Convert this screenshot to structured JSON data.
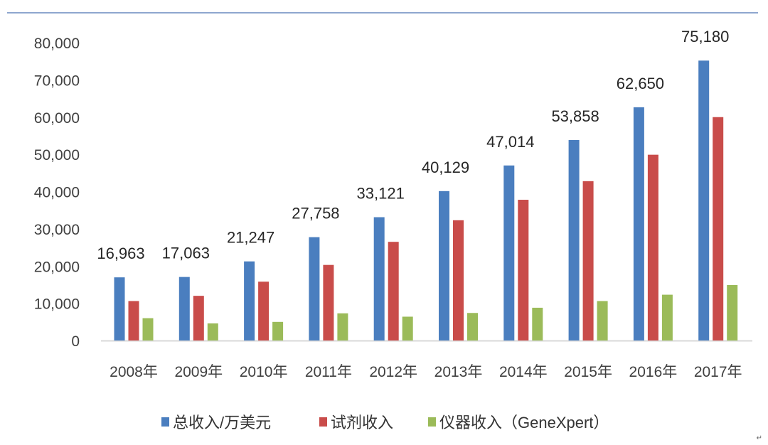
{
  "chart_data": {
    "type": "bar",
    "title": "",
    "xlabel": "",
    "ylabel": "",
    "ylim": [
      0,
      80000
    ],
    "yticks": [
      "0",
      "10,000",
      "20,000",
      "30,000",
      "40,000",
      "50,000",
      "60,000",
      "70,000",
      "80,000"
    ],
    "grid": false,
    "legend_position": "bottom",
    "categories": [
      "2008年",
      "2009年",
      "2010年",
      "2011年",
      "2012年",
      "2013年",
      "2014年",
      "2015年",
      "2016年",
      "2017年"
    ],
    "series": [
      {
        "name": "总收入/万美元",
        "color": "#4a7ebf",
        "values": [
          16963,
          17063,
          21247,
          27758,
          33121,
          40129,
          47014,
          53858,
          62650,
          75180
        ],
        "data_labels": [
          "16,963",
          "17,063",
          "21,247",
          "27,758",
          "33,121",
          "40,129",
          "47,014",
          "53,858",
          "62,650",
          "75,180"
        ]
      },
      {
        "name": "试剂收入",
        "color": "#c94c4a",
        "values": [
          10600,
          12000,
          15800,
          20300,
          26500,
          32300,
          37800,
          42800,
          49900,
          60000
        ]
      },
      {
        "name": "仪器收入（GeneXpert）",
        "color": "#9bbb59",
        "values": [
          6000,
          4600,
          5000,
          7300,
          6400,
          7400,
          8800,
          10600,
          12300,
          14900
        ]
      }
    ]
  },
  "colors": {
    "top_rule": "#8ea6cf",
    "axis": "#d9d9d9"
  },
  "return_mark": "↵"
}
